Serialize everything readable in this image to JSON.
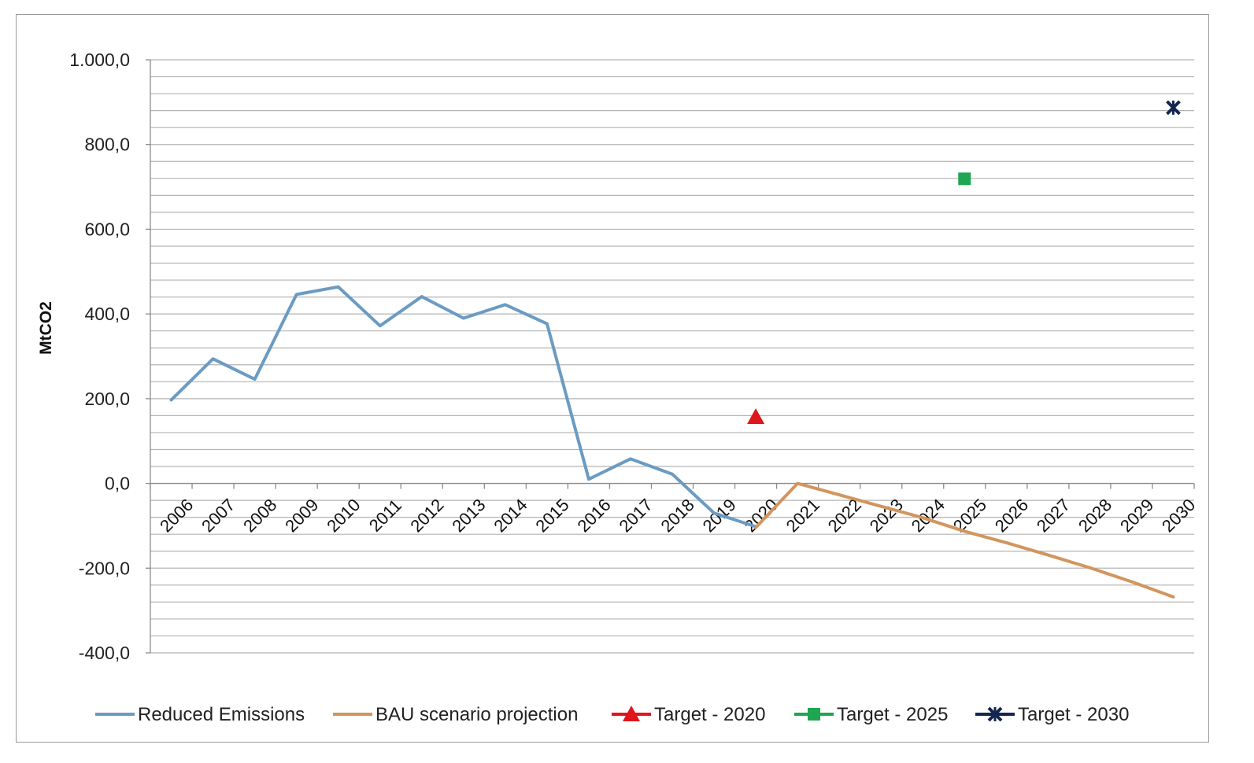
{
  "chart_data": {
    "type": "line",
    "title": "",
    "ylabel": "MtCO2",
    "xlabel": "",
    "ylim": [
      -400,
      1000
    ],
    "yticks": [
      -400,
      -200,
      0,
      200,
      400,
      600,
      800,
      1000
    ],
    "ytick_labels": [
      "-400,0",
      "-200,0",
      "0,0",
      "200,0",
      "400,0",
      "600,0",
      "800,0",
      "1.000,0"
    ],
    "y_minor_step": 40,
    "grid": true,
    "legend_position": "bottom",
    "categories": [
      "2006",
      "2007",
      "2008",
      "2009",
      "2010",
      "2011",
      "2012",
      "2013",
      "2014",
      "2015",
      "2016",
      "2017",
      "2018",
      "2019",
      "2020",
      "2021",
      "2022",
      "2023",
      "2024",
      "2025",
      "2026",
      "2027",
      "2028",
      "2029",
      "2030"
    ],
    "series": [
      {
        "name": "Reduced Emissions",
        "kind": "line",
        "color": "#6a9bc3",
        "values": [
          197,
          294,
          246,
          446,
          464,
          372,
          441,
          390,
          422,
          377,
          10,
          58,
          22,
          -70,
          -102,
          null,
          null,
          null,
          null,
          null,
          null,
          null,
          null,
          null,
          null
        ]
      },
      {
        "name": "BAU scenario projection",
        "kind": "line",
        "color": "#d2955e",
        "values": [
          null,
          null,
          null,
          null,
          null,
          null,
          null,
          null,
          null,
          null,
          null,
          null,
          null,
          null,
          -104,
          0,
          -27,
          -54,
          -81,
          -113,
          -140,
          -169,
          -199,
          -232,
          -268
        ]
      },
      {
        "name": "Target - 2020",
        "kind": "marker",
        "marker": "triangle",
        "color": "#e0161d",
        "x": "2020",
        "value": 157
      },
      {
        "name": "Target - 2025",
        "kind": "marker",
        "marker": "square",
        "color": "#1ea653",
        "x": "2025",
        "value": 719
      },
      {
        "name": "Target - 2030",
        "kind": "marker",
        "marker": "star",
        "color": "#14264d",
        "x": "2030",
        "value": 887
      }
    ]
  }
}
